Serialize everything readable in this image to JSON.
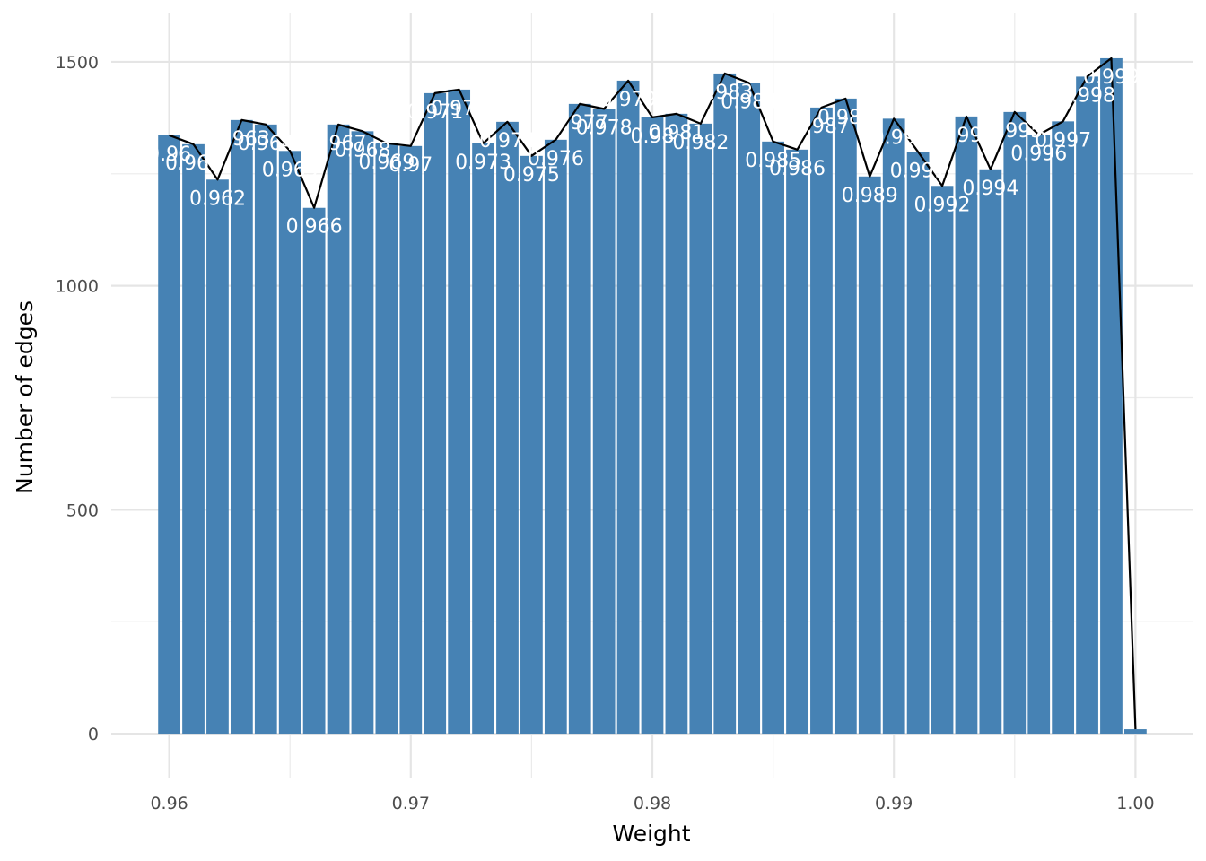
{
  "chart_data": {
    "type": "bar",
    "title": "",
    "xlabel": "Weight",
    "ylabel": "Number of edges",
    "xlim": [
      0.9576,
      1.0024
    ],
    "ylim": [
      -100,
      1610
    ],
    "x_ticks": [
      0.96,
      0.97,
      0.98,
      0.99,
      1.0
    ],
    "x_tick_labels": [
      "0.96",
      "0.97",
      "0.98",
      "0.99",
      "1.00"
    ],
    "y_ticks": [
      0,
      500,
      1000,
      1500
    ],
    "y_tick_labels": [
      "0",
      "500",
      "1000",
      "1500"
    ],
    "grid": true,
    "legend": "none",
    "bar_color": "#4682b4",
    "line_color": "#000000",
    "label_color": "#ffffff",
    "bar_width": 0.00092,
    "x": [
      0.96,
      0.961,
      0.962,
      0.963,
      0.964,
      0.965,
      0.966,
      0.967,
      0.968,
      0.969,
      0.97,
      0.971,
      0.972,
      0.973,
      0.974,
      0.975,
      0.976,
      0.977,
      0.978,
      0.979,
      0.98,
      0.981,
      0.982,
      0.983,
      0.984,
      0.985,
      0.986,
      0.987,
      0.988,
      0.989,
      0.99,
      0.991,
      0.992,
      0.993,
      0.994,
      0.995,
      0.996,
      0.997,
      0.998,
      0.999,
      1.0
    ],
    "values": [
      1336,
      1316,
      1237,
      1370,
      1360,
      1301,
      1174,
      1360,
      1345,
      1318,
      1312,
      1430,
      1438,
      1318,
      1366,
      1290,
      1326,
      1406,
      1395,
      1458,
      1376,
      1384,
      1362,
      1474,
      1453,
      1322,
      1304,
      1398,
      1418,
      1244,
      1373,
      1299,
      1223,
      1378,
      1260,
      1388,
      1337,
      1367,
      1467,
      1508,
      10
    ],
    "point_labels": [
      "0.96",
      "0.961",
      "0.962",
      "0.963",
      "0.964",
      "0.965",
      "0.966",
      "0.967",
      "0.968",
      "0.969",
      "0.97",
      "0.971",
      "0.972",
      "0.973",
      "0.974",
      "0.975",
      "0.976",
      "0.977",
      "0.978",
      "0.979",
      "0.98",
      "0.981",
      "0.982",
      "0.983",
      "0.984",
      "0.985",
      "0.986",
      "0.987",
      "0.988",
      "0.989",
      "0.99",
      "0.991",
      "0.992",
      "0.993",
      "0.994",
      "0.995",
      "0.996",
      "0.997",
      "0.998",
      "0.999",
      ""
    ]
  }
}
